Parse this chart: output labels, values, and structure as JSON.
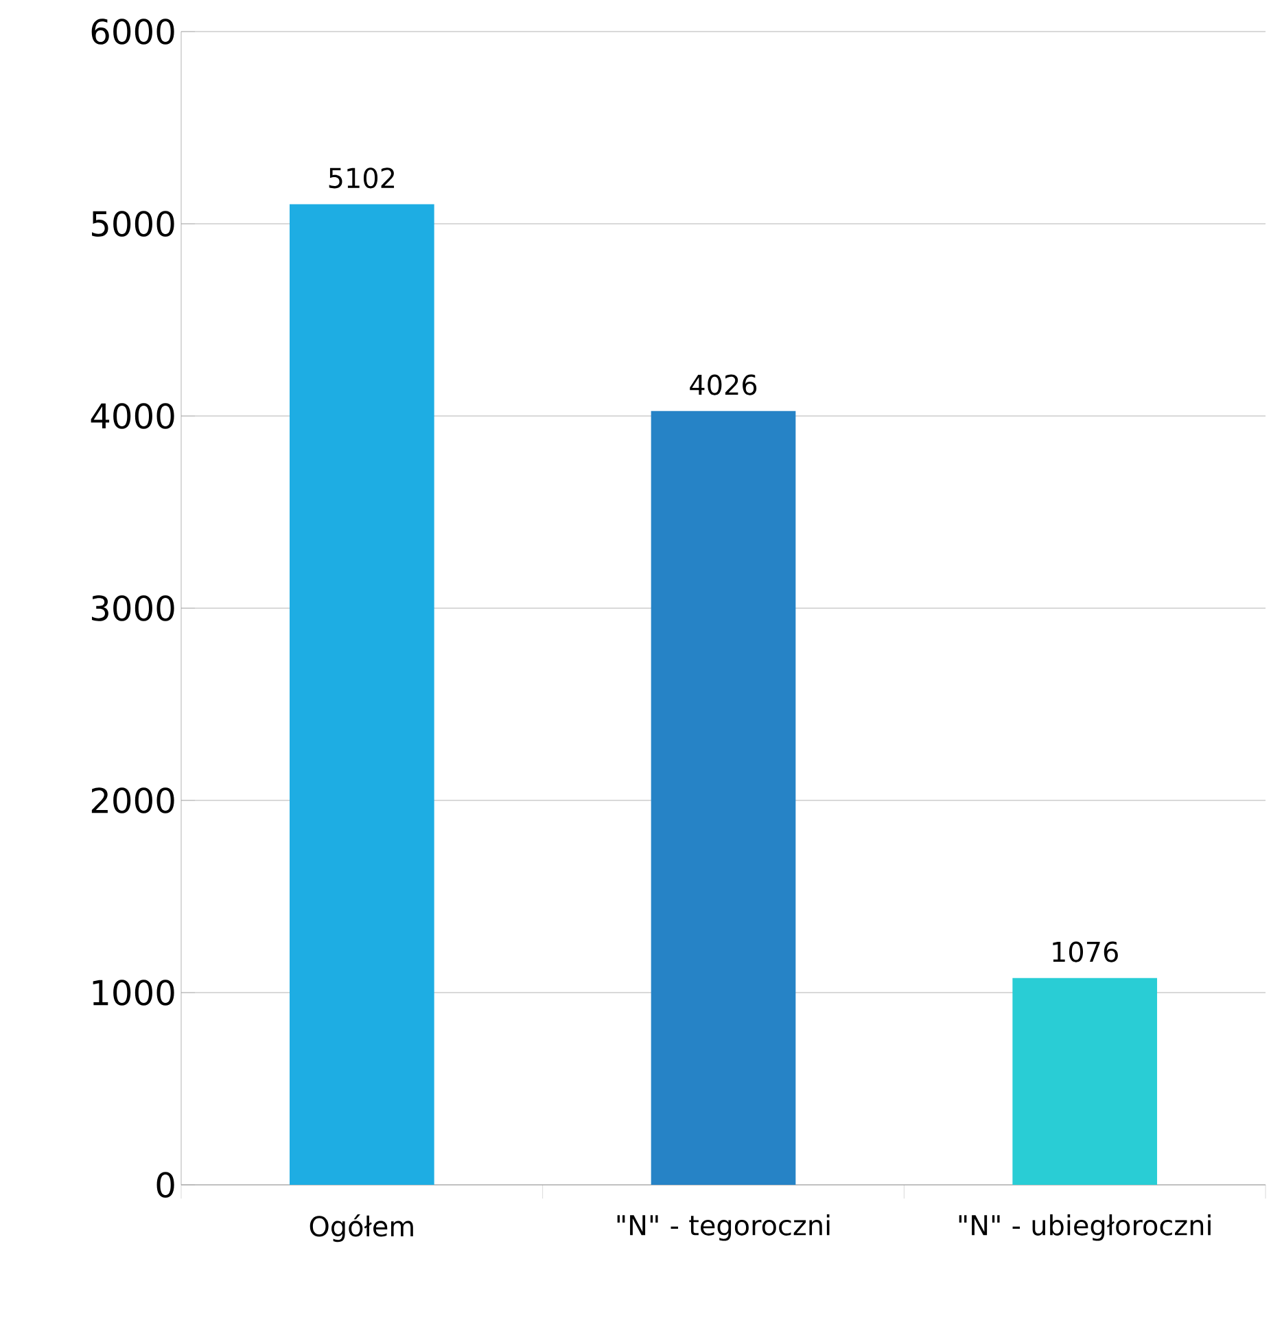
{
  "chart_data": {
    "type": "bar",
    "categories": [
      "Ogółem",
      "\"N\"  - tegoroczni",
      "\"N\"  - ubiegłoroczni"
    ],
    "values": [
      5102,
      4026,
      1076
    ],
    "colors": [
      "#1eade3",
      "#2683c6",
      "#29cdd5"
    ],
    "ylim": [
      0,
      6000
    ],
    "yticks": [
      0,
      1000,
      2000,
      3000,
      4000,
      5000,
      6000
    ],
    "grid": "y",
    "data_labels": true
  }
}
